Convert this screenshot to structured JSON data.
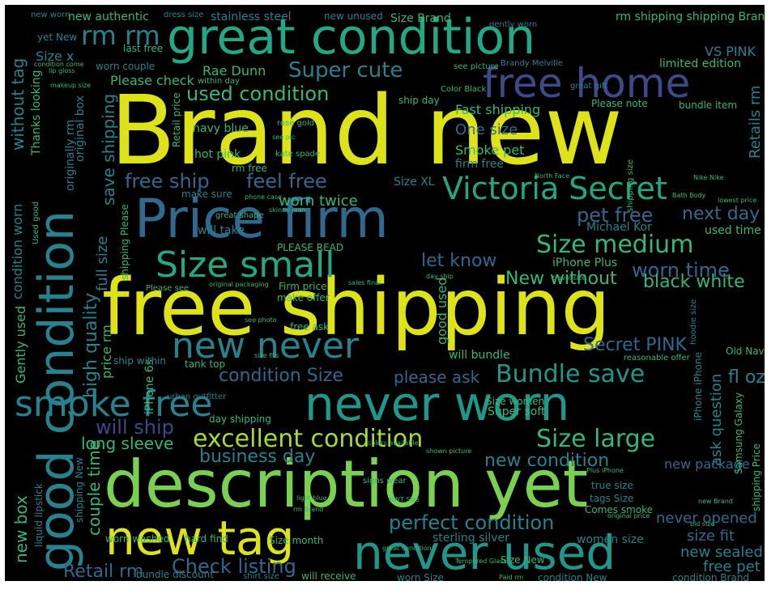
{
  "palette": {
    "background": "#000000",
    "yellow": "#dde318",
    "light_green": "#a5db36",
    "green": "#7ad151",
    "teal_green": "#35b779",
    "teal": "#22a884",
    "cyan_teal": "#1f988b",
    "blue_teal": "#26828e",
    "steel_blue": "#31688e",
    "slate": "#3e4989",
    "indigo": "#482878",
    "purple": "#440154"
  },
  "words": {
    "brand_new": "Brand new",
    "free_shipping": "free shipping",
    "description_yet": "description yet",
    "great_condition": "great condition",
    "price_firm": "Price firm",
    "never_worn": "never worn",
    "never_used": "never used",
    "new_tag": "new tag",
    "good_condition": "good condition",
    "smoke_free": "smoke free",
    "new_never": "new never",
    "size_small": "Size small",
    "free_home": "free home",
    "victoria_secret": "Victoria Secret",
    "size_medium": "Size medium",
    "excellent_condition": "excellent condition",
    "size_large": "Size large",
    "bundle_save": "Bundle save",
    "perfect_condition": "perfect condition",
    "new_condition": "new condition",
    "super_cute": "Super cute",
    "used_condition": "used condition",
    "free_ship": "free ship",
    "feel_free": "feel free",
    "worn_twice": "worn twice",
    "pet_free": "pet free",
    "next_day": "next day",
    "let_know": "let know",
    "worn_time": "worn time",
    "new_without": "New without",
    "black_white": "black white",
    "secret_pink": "Secret PINK",
    "condition_size": "condition Size",
    "please_ask": "please ask",
    "fl_oz": "fl oz",
    "will_ship": "will ship",
    "long_sleeve": "long sleeve",
    "business_day": "business day",
    "check_listing": "Check listing",
    "retail_rm": "Retail rm",
    "new_sealed": "new sealed",
    "free_pet": "free pet",
    "never_opened": "never opened",
    "size_fit": "size fit",
    "new_package": "new package",
    "one_size": "One size",
    "smoke_pet": "Smoke pet",
    "fast_shipping": "Fast shipping",
    "firm_free": "firm free",
    "rm_rm": "rm rm",
    "please_check": "Please check",
    "rae_dunn": "Rae Dunn",
    "vs_pink": "VS PINK",
    "limited_edition": "limited edition",
    "new_authentic": "new authentic",
    "stainless_steel": "stainless steel",
    "size_brand": "Size Brand",
    "rm_shipping_shipping_brand": "rm shipping shipping Brand",
    "new_unused": "new unused",
    "retails_rm": "Retails rm",
    "navy_blue": "navy blue",
    "hot_pink": "hot pink",
    "american_eagle": "American Eagle",
    "size_xl": "Size XL",
    "make_sure": "make sure",
    "michael_kor": "Michael Kor",
    "iphone_plus": "iPhone Plus",
    "please_read": "PLEASE READ",
    "will_take": "will take",
    "firm_price": "Firm price",
    "make_offer": "make offer",
    "free_ask": "free ask",
    "will_bundle": "will bundle",
    "iphone_6s": "iPhone 6s",
    "ship_within": "ship within",
    "super_soft": "Super soft",
    "size_women": "Size women",
    "day_shipping": "day shipping",
    "worn_washed": "worn washed",
    "hard_find": "hard find",
    "size_month": "Size month",
    "bundle_discount": "bundle discount",
    "shirt_size": "shirt size",
    "will_receive": "will receive",
    "worn_size": "worn Size",
    "condition_new": "condition New",
    "condition_brand": "condition Brand",
    "size_new": "Size New",
    "sterling_silver": "sterling silver",
    "women_size": "women size",
    "tags_size": "tags Size",
    "true_size": "true size",
    "comes_smoke": "Comes smoke",
    "bundle_item": "bundle item",
    "please_note": "Please note",
    "ship_day": "ship day",
    "used_time": "used time",
    "size_x": "Size x",
    "great_gift": "great gift",
    "brandy_melville": "Brandy Melville",
    "rm_free": "rm free",
    "retail_price": "Retail price",
    "high_quality": "high quality",
    "full_size": "full size",
    "price_rm": "price rm",
    "couple_time": "couple time",
    "new_box": "new box",
    "gently_used": "Gently used",
    "without_tag": "without tag",
    "thanks_looking": "Thanks looking",
    "originally_rm": "originally rm",
    "original_box": "original box",
    "save_shipping": "save shipping",
    "ask_question": "ask question",
    "shipping_price": "shipping Price",
    "iphone_iphone": "iPhone iPhone",
    "samsung_galaxy": "Samsung Galaxy",
    "used_good": "Used good",
    "condition_worn": "condition worn",
    "good_used": "good used",
    "old_navy": "Old Navy",
    "reasonable_offer": "reasonable offer",
    "tank_top": "tank top",
    "urban_outfitter": "urban outfitter",
    "great_shape": "great shape",
    "signs_wear": "signs wear",
    "within_day": "within day",
    "worn_couple": "worn couple",
    "dress_size": "dress size",
    "new_worn": "new worn",
    "condition_come": "condition come",
    "see_picture": "see picture",
    "color_black": "Color Black",
    "gently_worn": "gently worn",
    "great_condition_small": "great condition",
    "yet_new": "yet New",
    "last_free": "last free",
    "makeup_size": "makeup size",
    "lip_gloss": "lip gloss",
    "see_pic": "see pic",
    "rose_gold": "rose gold",
    "kate_spade": "kate spade",
    "phone_case": "phone case",
    "north_face": "North Face",
    "shipping_size": "shipping size",
    "nike_nike": "Nike Nike",
    "bath_body": "Bath Body",
    "lowest_price": "lowest price",
    "skinny_jean": "skinny jean",
    "ship_please": "shipping Please",
    "travel_size": "travel size",
    "sales_final": "sales final",
    "original_packaging": "original packaging",
    "please_see": "Please see",
    "see_photo": "see photo",
    "day_ship": "day ship",
    "size_fits": "size fits",
    "liquid_lipstick": "liquid lipstick",
    "shipping_new": "shipping New",
    "colors_available": "colors available",
    "shown_picture": "shown picture",
    "light_blue": "light blue",
    "rm_brand": "rm Brand",
    "tempered_glass": "Tempered Glass",
    "nwt_size": "NWT Size",
    "new_brand": "new Brand",
    "original_price": "original price",
    "paid_rm": "Paid rm",
    "bid_size": "bid size",
    "plus_iphone": "Plus iPhone",
    "hoodie_size": "hoodie size"
  }
}
